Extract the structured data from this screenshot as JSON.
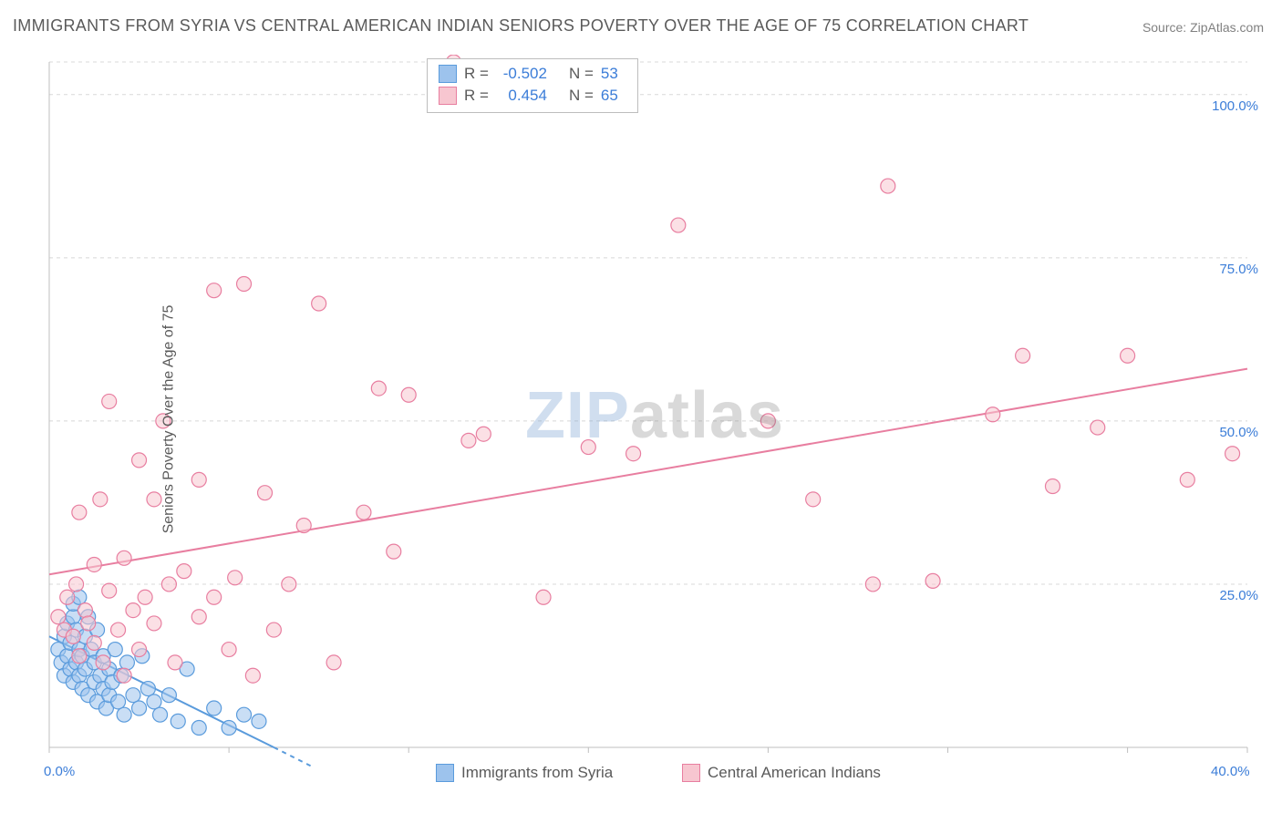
{
  "title": "IMMIGRANTS FROM SYRIA VS CENTRAL AMERICAN INDIAN SENIORS POVERTY OVER THE AGE OF 75 CORRELATION CHART",
  "source": "Source: ZipAtlas.com",
  "watermark_zip": "ZIP",
  "watermark_atlas": "atlas",
  "y_axis_label": "Seniors Poverty Over the Age of 75",
  "chart": {
    "type": "scatter",
    "background_color": "#ffffff",
    "grid_color": "#d8d8d8",
    "grid_dash": "4,4",
    "axis_line_color": "#bfbfbf",
    "x_range": [
      0,
      40
    ],
    "y_range": [
      0,
      105
    ],
    "x_ticks": [
      0,
      6,
      12,
      18,
      24,
      30,
      36,
      40
    ],
    "x_tick_labels": {
      "0": "0.0%",
      "40": "40.0%"
    },
    "y_ticks": [
      25,
      50,
      75,
      100,
      105
    ],
    "y_tick_labels": {
      "25": "25.0%",
      "50": "50.0%",
      "75": "75.0%",
      "100": "100.0%"
    },
    "marker_radius": 8,
    "marker_opacity": 0.55,
    "series": [
      {
        "name": "Immigrants from Syria",
        "color_fill": "#9dc3ed",
        "color_stroke": "#5a9bdc",
        "R": "-0.502",
        "N": "53",
        "trend": {
          "x1": 0,
          "y1": 17,
          "x2": 7.5,
          "y2": 0,
          "dash_ext": {
            "x2": 8.8,
            "y2": -3
          }
        },
        "points": [
          [
            0.3,
            15
          ],
          [
            0.4,
            13
          ],
          [
            0.5,
            11
          ],
          [
            0.5,
            17
          ],
          [
            0.6,
            14
          ],
          [
            0.6,
            19
          ],
          [
            0.7,
            12
          ],
          [
            0.7,
            16
          ],
          [
            0.8,
            10
          ],
          [
            0.8,
            20
          ],
          [
            0.8,
            22
          ],
          [
            0.9,
            13
          ],
          [
            0.9,
            18
          ],
          [
            1.0,
            11
          ],
          [
            1.0,
            15
          ],
          [
            1.0,
            23
          ],
          [
            1.1,
            9
          ],
          [
            1.1,
            14
          ],
          [
            1.2,
            12
          ],
          [
            1.2,
            17
          ],
          [
            1.3,
            8
          ],
          [
            1.3,
            20
          ],
          [
            1.4,
            15
          ],
          [
            1.5,
            10
          ],
          [
            1.5,
            13
          ],
          [
            1.6,
            7
          ],
          [
            1.6,
            18
          ],
          [
            1.7,
            11
          ],
          [
            1.8,
            9
          ],
          [
            1.8,
            14
          ],
          [
            1.9,
            6
          ],
          [
            2.0,
            12
          ],
          [
            2.0,
            8
          ],
          [
            2.1,
            10
          ],
          [
            2.2,
            15
          ],
          [
            2.3,
            7
          ],
          [
            2.4,
            11
          ],
          [
            2.5,
            5
          ],
          [
            2.6,
            13
          ],
          [
            2.8,
            8
          ],
          [
            3.0,
            6
          ],
          [
            3.1,
            14
          ],
          [
            3.3,
            9
          ],
          [
            3.5,
            7
          ],
          [
            3.7,
            5
          ],
          [
            4.0,
            8
          ],
          [
            4.3,
            4
          ],
          [
            4.6,
            12
          ],
          [
            5.0,
            3
          ],
          [
            5.5,
            6
          ],
          [
            6.0,
            3
          ],
          [
            6.5,
            5
          ],
          [
            7.0,
            4
          ]
        ]
      },
      {
        "name": "Central American Indians",
        "color_fill": "#f7c6d0",
        "color_stroke": "#e87ea0",
        "R": "0.454",
        "N": "65",
        "trend": {
          "x1": 0,
          "y1": 26.5,
          "x2": 40,
          "y2": 58
        },
        "points": [
          [
            0.3,
            20
          ],
          [
            0.5,
            18
          ],
          [
            0.6,
            23
          ],
          [
            0.8,
            17
          ],
          [
            0.9,
            25
          ],
          [
            1.0,
            14
          ],
          [
            1.0,
            36
          ],
          [
            1.2,
            21
          ],
          [
            1.3,
            19
          ],
          [
            1.5,
            16
          ],
          [
            1.5,
            28
          ],
          [
            1.7,
            38
          ],
          [
            1.8,
            13
          ],
          [
            2.0,
            24
          ],
          [
            2.0,
            53
          ],
          [
            2.3,
            18
          ],
          [
            2.5,
            11
          ],
          [
            2.5,
            29
          ],
          [
            2.8,
            21
          ],
          [
            3.0,
            44
          ],
          [
            3.0,
            15
          ],
          [
            3.2,
            23
          ],
          [
            3.5,
            38
          ],
          [
            3.5,
            19
          ],
          [
            3.8,
            50
          ],
          [
            4.0,
            25
          ],
          [
            4.2,
            13
          ],
          [
            4.5,
            27
          ],
          [
            5.0,
            41
          ],
          [
            5.0,
            20
          ],
          [
            5.5,
            23
          ],
          [
            5.5,
            70
          ],
          [
            6.0,
            15
          ],
          [
            6.2,
            26
          ],
          [
            6.5,
            71
          ],
          [
            6.8,
            11
          ],
          [
            7.2,
            39
          ],
          [
            7.5,
            18
          ],
          [
            8.0,
            25
          ],
          [
            8.5,
            34
          ],
          [
            9.0,
            68
          ],
          [
            9.5,
            13
          ],
          [
            10.5,
            36
          ],
          [
            11.0,
            55
          ],
          [
            11.5,
            30
          ],
          [
            12.0,
            54
          ],
          [
            13.5,
            105
          ],
          [
            14.0,
            47
          ],
          [
            14.5,
            48
          ],
          [
            16.5,
            23
          ],
          [
            18.0,
            46
          ],
          [
            19.5,
            45
          ],
          [
            21.0,
            80
          ],
          [
            25.5,
            38
          ],
          [
            27.5,
            25
          ],
          [
            28.0,
            86
          ],
          [
            29.5,
            25.5
          ],
          [
            31.5,
            51
          ],
          [
            32.5,
            60
          ],
          [
            33.5,
            40
          ],
          [
            35.0,
            49
          ],
          [
            36.0,
            60
          ],
          [
            38.0,
            41
          ],
          [
            39.5,
            45
          ],
          [
            24.0,
            50
          ]
        ]
      }
    ],
    "legends": {
      "bottom": [
        {
          "label": "Immigrants from Syria",
          "fill": "#9dc3ed",
          "stroke": "#5a9bdc"
        },
        {
          "label": "Central American Indians",
          "fill": "#f7c6d0",
          "stroke": "#e87ea0"
        }
      ],
      "stats_box": {
        "rows": [
          {
            "fill": "#9dc3ed",
            "stroke": "#5a9bdc",
            "R_label": "R =",
            "R": "-0.502",
            "N_label": "N =",
            "N": "53"
          },
          {
            "fill": "#f7c6d0",
            "stroke": "#e87ea0",
            "R_label": "R =",
            "R": "0.454",
            "N_label": "N =",
            "N": "65"
          }
        ]
      }
    }
  }
}
